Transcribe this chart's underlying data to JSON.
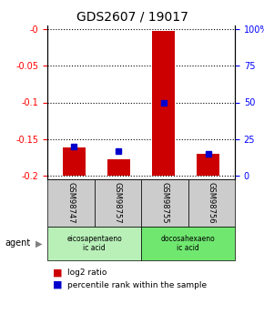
{
  "title": "GDS2607 / 19017",
  "samples": [
    "GSM98747",
    "GSM98757",
    "GSM98755",
    "GSM98756"
  ],
  "log2_ratio": [
    -0.162,
    -0.178,
    -0.002,
    -0.17
  ],
  "percentile_rank": [
    0.2,
    0.17,
    0.5,
    0.15
  ],
  "bar_bottom": -0.2,
  "ylim_left": [
    -0.205,
    0.005
  ],
  "yticks_left": [
    0,
    -0.05,
    -0.1,
    -0.15,
    -0.2
  ],
  "ytick_labels_left": [
    "-0",
    "-0.05",
    "-0.1",
    "-0.15",
    "-0.2"
  ],
  "ytick_labels_right": [
    "0",
    "25",
    "50",
    "75",
    "100%"
  ],
  "bar_color": "#cc0000",
  "blue_color": "#0000cc",
  "bar_width": 0.5,
  "legend_red_label": "log2 ratio",
  "legend_blue_label": "percentile rank within the sample",
  "agent_label": "agent",
  "background_color": "#ffffff",
  "sample_box_color": "#cccccc",
  "agent_box_colors": [
    "#b8f0b8",
    "#70e870"
  ],
  "agents": [
    {
      "label": "eicosapentaeno\nic acid",
      "samples": [
        0,
        1
      ]
    },
    {
      "label": "docosahexaeno\nic acid",
      "samples": [
        2,
        3
      ]
    }
  ]
}
